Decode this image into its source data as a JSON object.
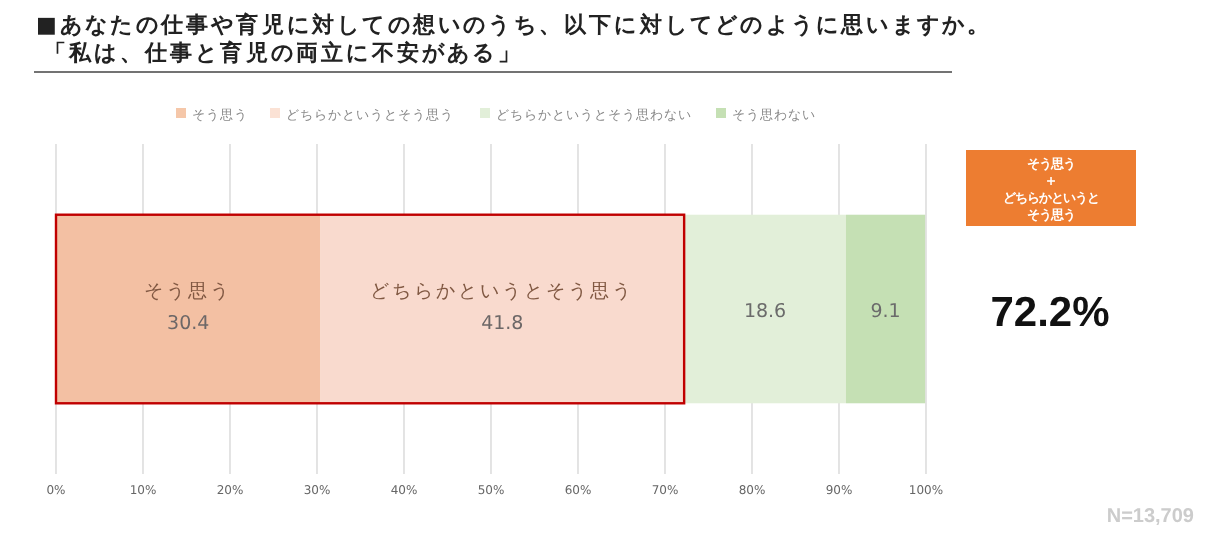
{
  "chart_data": {
    "type": "bar",
    "orientation": "horizontal",
    "stacked": true,
    "title": "■あなたの仕事や育児に対しての想いのうち、以下に対してどのように思いますか。",
    "subtitle": "「私は、仕事と育児の両立に不安がある」",
    "categories": [
      null
    ],
    "series": [
      {
        "name": "そう思う",
        "color": "#f5c7a9",
        "values": [
          30.4
        ]
      },
      {
        "name": "どちらかというとそう思う",
        "color": "#fbe2d5",
        "values": [
          41.8
        ]
      },
      {
        "name": "どちらかというとそう思わない",
        "color": "#e2efd9",
        "values": [
          18.6
        ]
      },
      {
        "name": "そう思わない",
        "color": "#c5e0b4",
        "values": [
          9.1
        ]
      }
    ],
    "data_labels": true,
    "xlim": [
      0,
      100
    ],
    "xticks": [
      {
        "value": 0,
        "label": "0%"
      },
      {
        "value": 10,
        "label": "10%"
      },
      {
        "value": 20,
        "label": "20%"
      },
      {
        "value": 30,
        "label": "30%"
      },
      {
        "value": 40,
        "label": "40%"
      },
      {
        "value": 50,
        "label": "50%"
      },
      {
        "value": 60,
        "label": "60%"
      },
      {
        "value": 70,
        "label": "70%"
      },
      {
        "value": 80,
        "label": "80%"
      },
      {
        "value": 90,
        "label": "90%"
      },
      {
        "value": 100,
        "label": "100%"
      }
    ],
    "grid": "x",
    "legend": "top",
    "bands": [
      {
        "axis": "x",
        "from": 0,
        "to": 72.2,
        "color": "#c00000"
      }
    ],
    "annotations": [
      "そう思う\n+\nどちらかというとそう思う",
      "72.2%",
      "N=13,709"
    ]
  }
}
